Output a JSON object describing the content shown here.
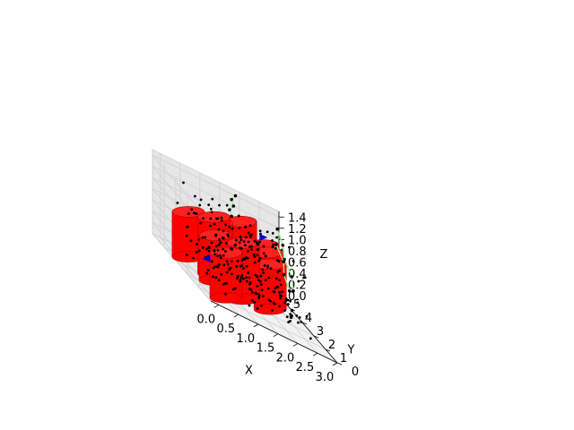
{
  "chart_data": {
    "type": "3d-scatter-with-cylinders",
    "xlabel": "X",
    "ylabel": "Y",
    "zlabel": "Z",
    "xlim": [
      -0.2,
      3.0
    ],
    "ylim": [
      0,
      5
    ],
    "zlim": [
      0,
      1.5
    ],
    "x_ticks": [
      "0.0",
      "0.5",
      "1.0",
      "1.5",
      "2.0",
      "2.5",
      "3.0"
    ],
    "y_ticks": [
      "0",
      "1",
      "2",
      "3",
      "4",
      "5"
    ],
    "z_ticks": [
      "0.0",
      "0.2",
      "0.4",
      "0.6",
      "0.8",
      "1.0",
      "1.2",
      "1.4"
    ],
    "grid": true,
    "cylinder_color": "#ff0000",
    "point_color": "#000000",
    "path_color": "#90ee90",
    "marker_color": "#0000cc",
    "cylinders": [
      {
        "x": 0.6,
        "y": 1.4,
        "height": 0.8
      },
      {
        "x": 1.3,
        "y": 2.3,
        "height": 1.0
      },
      {
        "x": 2.1,
        "y": 2.7,
        "height": 0.8
      },
      {
        "x": 0.8,
        "y": 3.0,
        "height": 0.8
      },
      {
        "x": 1.0,
        "y": 3.8,
        "height": 1.0
      },
      {
        "x": 1.7,
        "y": 3.7,
        "height": 0.8
      },
      {
        "x": 2.4,
        "y": 4.0,
        "height": 0.8
      },
      {
        "x": 0.5,
        "y": 4.3,
        "height": 0.8
      },
      {
        "x": 1.3,
        "y": 4.6,
        "height": 0.8
      },
      {
        "x": 2.0,
        "y": 4.9,
        "height": 1.0
      },
      {
        "x": 2.5,
        "y": 4.7,
        "height": 0.8
      }
    ],
    "cylinder_radius": 0.15
  }
}
